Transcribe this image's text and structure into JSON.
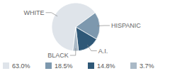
{
  "chart_data": {
    "type": "pie",
    "categories": [
      "WHITE",
      "HISPANIC",
      "A.I.",
      "BLACK"
    ],
    "values": [
      63.0,
      18.5,
      14.8,
      3.7
    ],
    "value_labels": [
      "63.0%",
      "18.5%",
      "14.8%",
      "3.7%"
    ],
    "colors": [
      "#dfe4ea",
      "#7d98ae",
      "#2f5877",
      "#aab9c6"
    ]
  }
}
